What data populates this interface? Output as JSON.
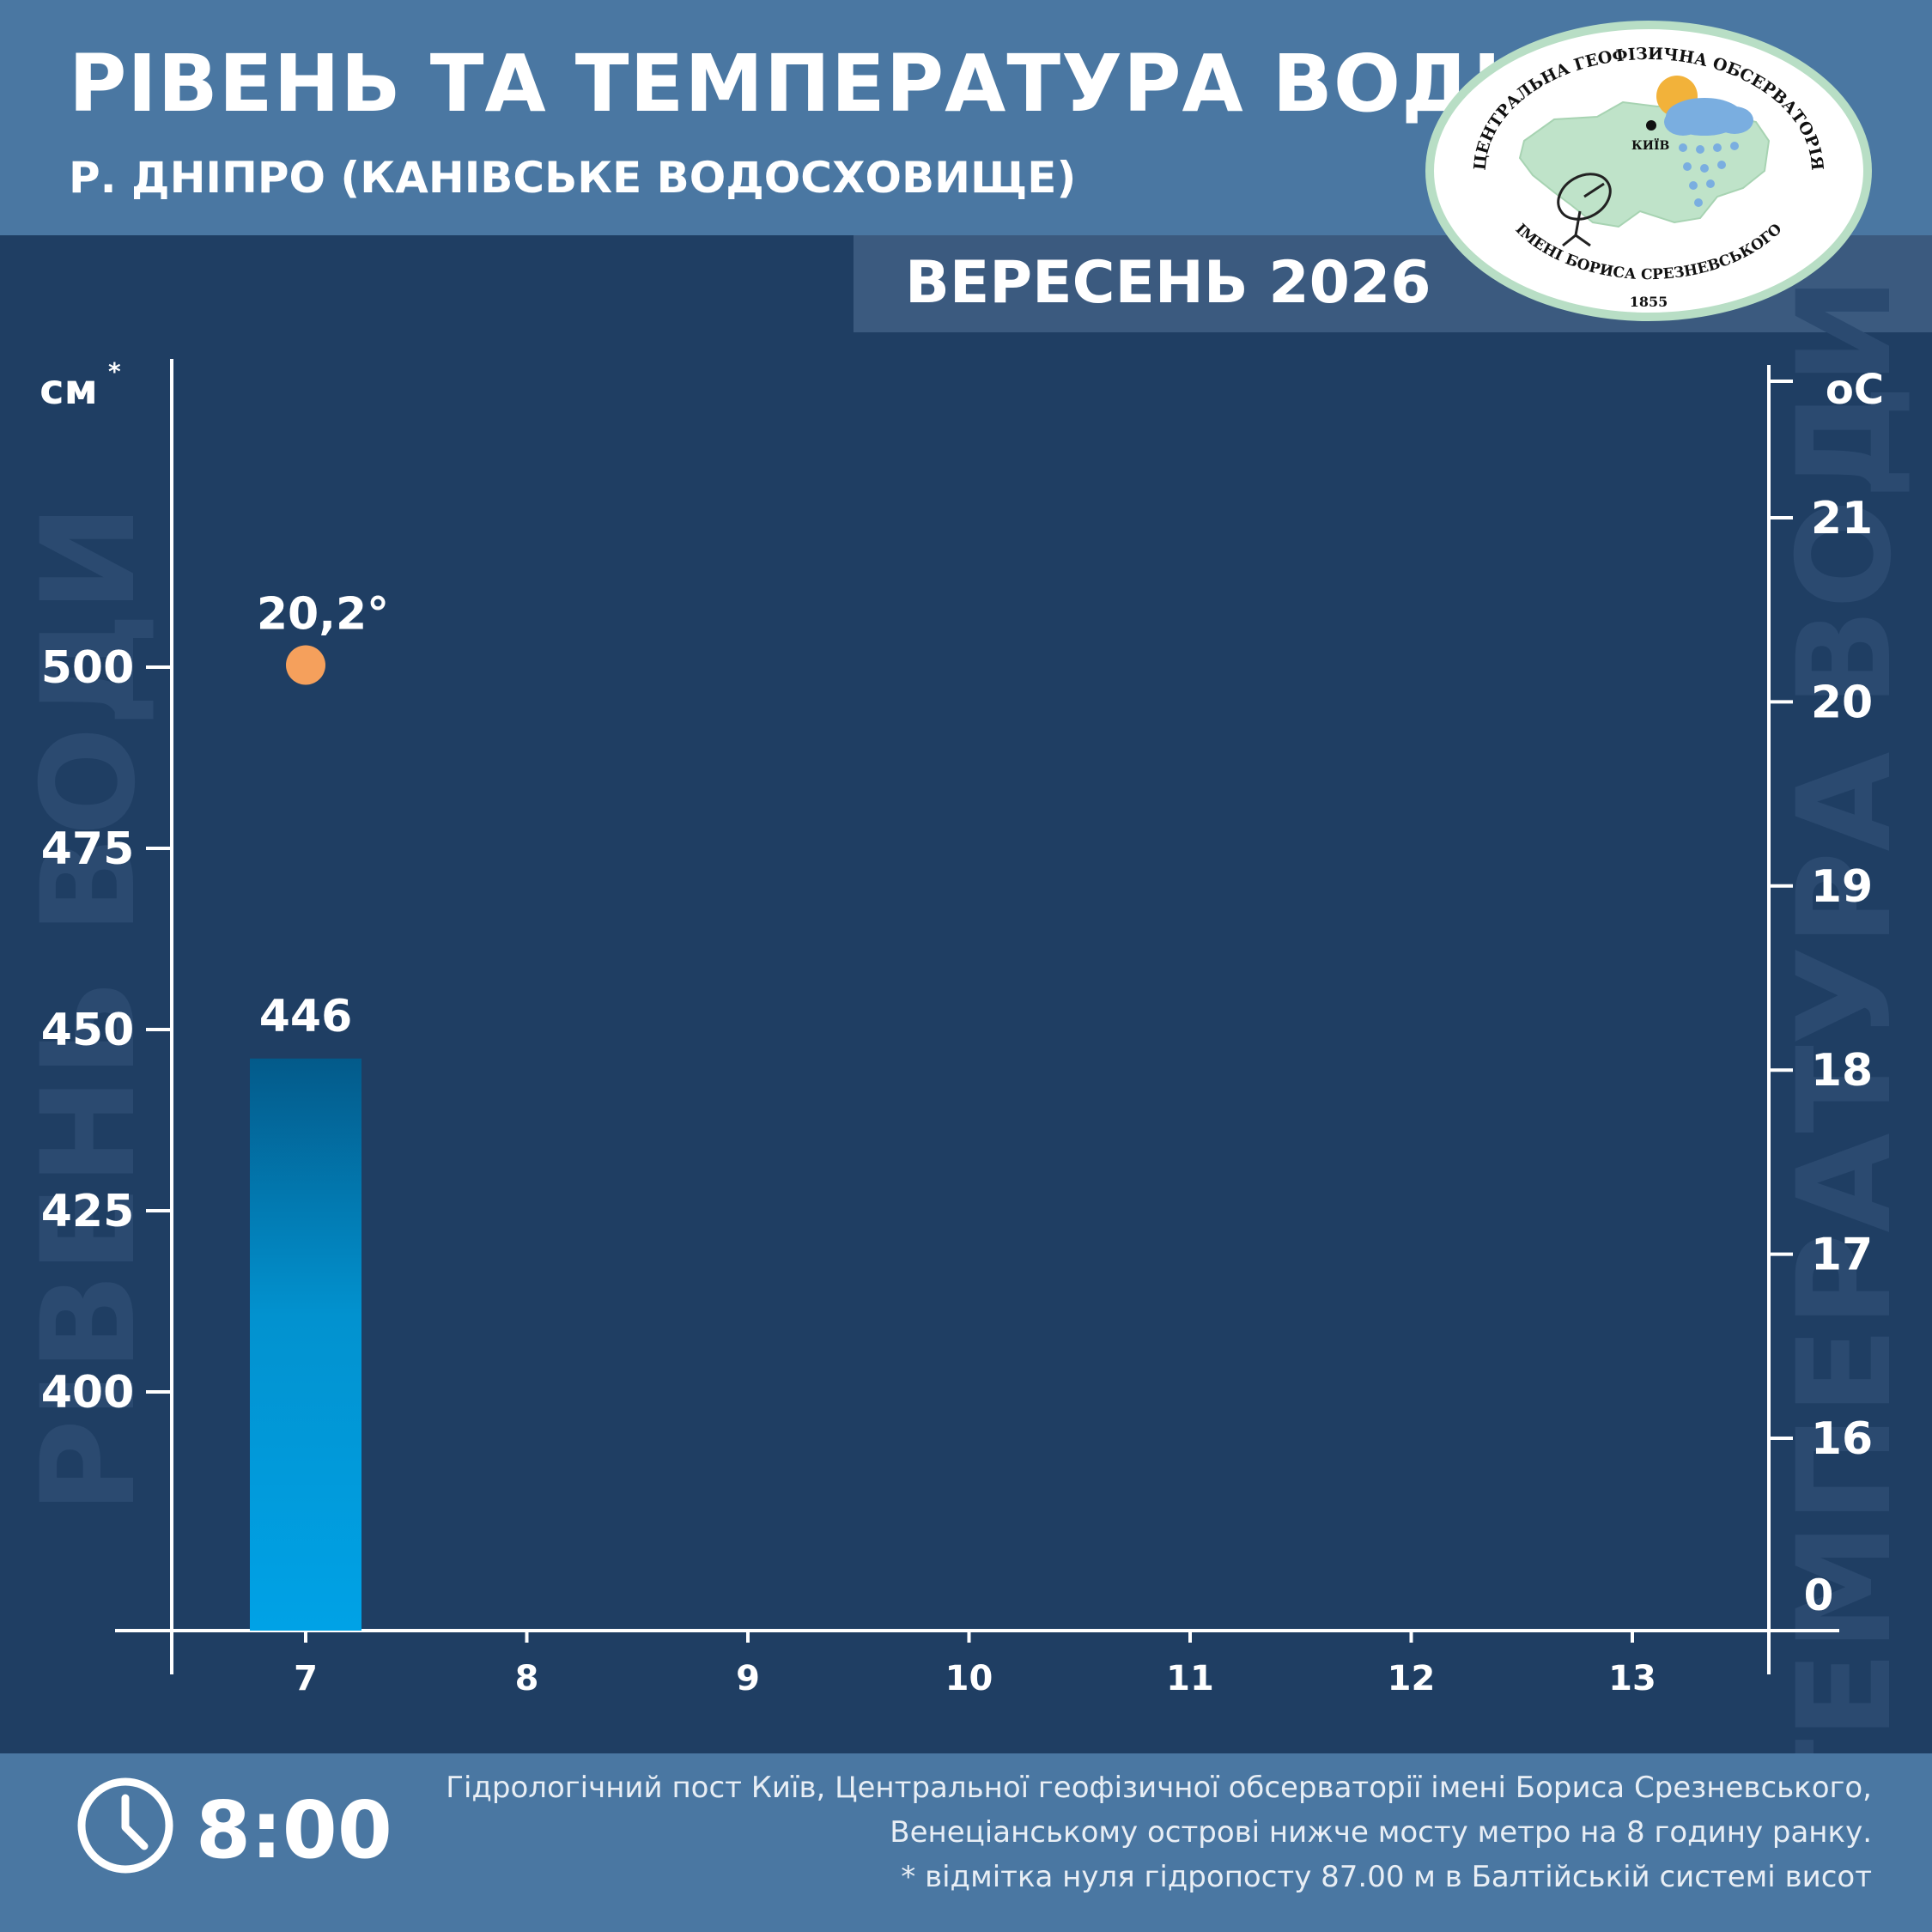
{
  "header": {
    "title": "РІВЕНЬ ТА ТЕМПЕРАТУРА ВОДИ",
    "subtitle": "Р. ДНІПРО (КАНІВСЬКЕ ВОДОСХОВИЩЕ)",
    "month": "ВЕРЕСЕНЬ 2026"
  },
  "logo": {
    "top_text": "ЦЕНТРАЛЬНА ГЕОФІЗИЧНА ОБСЕРВАТОРІЯ",
    "bottom_text": "ІМЕНІ БОРИСА СРЕЗНЕВСЬКОГО",
    "year": "1855",
    "city": "КИЇВ"
  },
  "chart_data": {
    "type": "bar",
    "categories": [
      "7",
      "8",
      "9",
      "10",
      "11",
      "12",
      "13"
    ],
    "level_values": [
      446,
      null,
      null,
      null,
      null,
      null,
      null
    ],
    "temperature_values": [
      20.2,
      null,
      null,
      null,
      null,
      null,
      null
    ],
    "level_labels": [
      "446",
      "",
      "",
      "",
      "",
      "",
      ""
    ],
    "temperature_labels": [
      "20,2°",
      "",
      "",
      "",
      "",
      "",
      ""
    ],
    "left_axis": {
      "unit": "см",
      "unit_mark": "*",
      "ticks": [
        "400",
        "425",
        "450",
        "475",
        "500"
      ],
      "title": "РІВЕНЬ ВОДИ"
    },
    "right_axis": {
      "unit": "оС",
      "ticks": [
        "16",
        "17",
        "18",
        "19",
        "20",
        "21"
      ],
      "zero_label": "0",
      "title": "ТЕМПЕРАТУРА ВОДИ"
    },
    "colors": {
      "bar_top": "#035a8a",
      "bar_bottom": "#00a2e6",
      "point": "#f5a05c",
      "axis": "#ffffff"
    }
  },
  "footer": {
    "time": "8:00",
    "note_lines": [
      "Гідрологічний пост Київ, Центральної геофізичної обсерваторії імені Бориса Срезневського,",
      "Венеціанському острові нижче мосту метро  на 8 годину ранку.",
      "* відмітка нуля гідропосту 87.00 м в Балтійській системі висот"
    ]
  }
}
